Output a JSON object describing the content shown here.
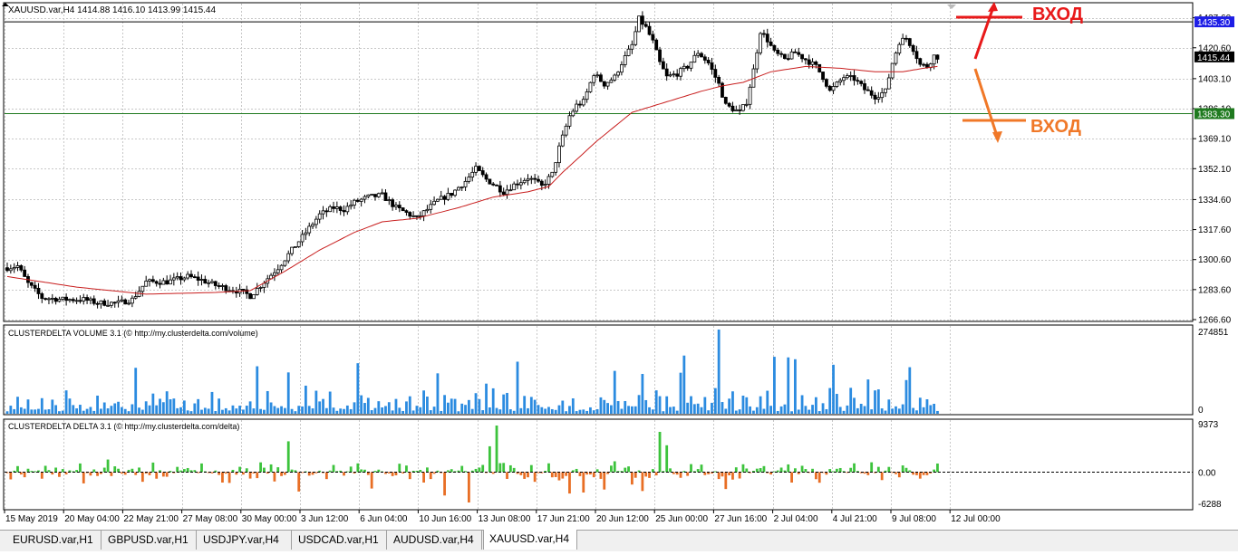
{
  "window": {
    "symbol_header": "XAUUSD.var,H4  1414.88 1416.10 1413.99 1415.44"
  },
  "price_axis": {
    "ticks": [
      "1437.60",
      "1420.60",
      "1403.10",
      "1386.10",
      "1369.10",
      "1352.10",
      "1334.60",
      "1317.60",
      "1300.60",
      "1283.60",
      "1266.60"
    ],
    "markers": [
      {
        "value": "1435.30",
        "color": "#1e1ee6"
      },
      {
        "value": "1415.44",
        "color": "#000000"
      },
      {
        "value": "1383.30",
        "color": "#1f7a1f"
      }
    ]
  },
  "annotations": {
    "entry_top_label": "ВХОД",
    "entry_bottom_label": "ВХОД",
    "entry_top_color": "#e8191a",
    "entry_bottom_color": "#f07828"
  },
  "volume_panel": {
    "title": "CLUSTERDELTA VOLUME 3.1 (© http://my.clusterdelta.com/volume)",
    "max_label": "274851",
    "min_label": "0",
    "bar_color": "#2b8be0"
  },
  "delta_panel": {
    "title": "CLUSTERDELTA DELTA 3.1 (© http://my.clusterdelta.com/delta)",
    "max_label": "9373",
    "zero_label": "0.00",
    "min_label": "-6288",
    "positive_color": "#3cc33c",
    "negative_color": "#e86e24"
  },
  "time_axis": {
    "labels": [
      "15 May 2019",
      "20 May 04:00",
      "22 May 21:00",
      "27 May 08:00",
      "30 May 00:00",
      "3 Jun 12:00",
      "6 Jun 04:00",
      "10 Jun 16:00",
      "13 Jun 08:00",
      "17 Jun 21:00",
      "20 Jun 12:00",
      "25 Jun 00:00",
      "27 Jun 16:00",
      "2 Jul 04:00",
      "4 Jul 21:00",
      "9 Jul 08:00",
      "12 Jul 00:00"
    ]
  },
  "tabs": [
    {
      "label": "EURUSD.var,H1",
      "active": false
    },
    {
      "label": "GBPUSD.var,H1",
      "active": false
    },
    {
      "label": "USDJPY.var,H4",
      "active": false
    },
    {
      "label": "USDCAD.var,H1",
      "active": false
    },
    {
      "label": "AUDUSD.var,H4",
      "active": false
    },
    {
      "label": "XAUUSD.var,H4",
      "active": true
    }
  ],
  "chart_data": [
    {
      "type": "candlestick",
      "title": "XAUUSD.var,H4",
      "ylim": [
        1266.6,
        1441
      ],
      "horizontal_levels": [
        1435.3,
        1383.3
      ],
      "last_price": 1415.44,
      "ma_color": "#c81e1e",
      "close_anchors": [
        [
          0,
          1296
        ],
        [
          3,
          1297
        ],
        [
          6,
          1287
        ],
        [
          10,
          1279
        ],
        [
          16,
          1278
        ],
        [
          22,
          1278
        ],
        [
          26,
          1276
        ],
        [
          32,
          1276
        ],
        [
          36,
          1278
        ],
        [
          40,
          1288
        ],
        [
          46,
          1288
        ],
        [
          52,
          1291
        ],
        [
          56,
          1289
        ],
        [
          60,
          1286
        ],
        [
          64,
          1284
        ],
        [
          68,
          1282
        ],
        [
          70,
          1280
        ],
        [
          73,
          1286
        ],
        [
          78,
          1296
        ],
        [
          82,
          1306
        ],
        [
          86,
          1316
        ],
        [
          90,
          1326
        ],
        [
          94,
          1330
        ],
        [
          97,
          1329
        ],
        [
          100,
          1333
        ],
        [
          104,
          1336
        ],
        [
          108,
          1337
        ],
        [
          112,
          1330
        ],
        [
          116,
          1326
        ],
        [
          118,
          1324
        ],
        [
          121,
          1329
        ],
        [
          124,
          1334
        ],
        [
          128,
          1338
        ],
        [
          132,
          1345
        ],
        [
          135,
          1352
        ],
        [
          138,
          1346
        ],
        [
          141,
          1342
        ],
        [
          143,
          1339
        ],
        [
          146,
          1343
        ],
        [
          150,
          1347
        ],
        [
          152,
          1345
        ],
        [
          154,
          1342
        ],
        [
          157,
          1349
        ],
        [
          159,
          1364
        ],
        [
          162,
          1382
        ],
        [
          164,
          1388
        ],
        [
          166,
          1390
        ],
        [
          169,
          1406
        ],
        [
          172,
          1400
        ],
        [
          175,
          1404
        ],
        [
          177,
          1412
        ],
        [
          180,
          1422
        ],
        [
          182,
          1437
        ],
        [
          184,
          1432
        ],
        [
          186,
          1424
        ],
        [
          188,
          1412
        ],
        [
          190,
          1404
        ],
        [
          193,
          1406
        ],
        [
          196,
          1410
        ],
        [
          199,
          1418
        ],
        [
          202,
          1412
        ],
        [
          205,
          1400
        ],
        [
          207,
          1388
        ],
        [
          209,
          1386
        ],
        [
          211,
          1384
        ],
        [
          213,
          1390
        ],
        [
          215,
          1408
        ],
        [
          217,
          1430
        ],
        [
          219,
          1425
        ],
        [
          221,
          1418
        ],
        [
          224,
          1414
        ],
        [
          227,
          1418
        ],
        [
          230,
          1414
        ],
        [
          233,
          1410
        ],
        [
          235,
          1404
        ],
        [
          237,
          1396
        ],
        [
          239,
          1400
        ],
        [
          241,
          1404
        ],
        [
          244,
          1403
        ],
        [
          247,
          1397
        ],
        [
          250,
          1393
        ],
        [
          253,
          1396
        ],
        [
          255,
          1412
        ],
        [
          257,
          1424
        ],
        [
          259,
          1426
        ],
        [
          261,
          1420
        ],
        [
          263,
          1411
        ],
        [
          265,
          1410
        ],
        [
          267,
          1416
        ],
        [
          268,
          1415.44
        ]
      ],
      "ma_anchors": [
        [
          0,
          1291
        ],
        [
          20,
          1285
        ],
        [
          40,
          1281
        ],
        [
          60,
          1282
        ],
        [
          70,
          1283
        ],
        [
          80,
          1294
        ],
        [
          90,
          1306
        ],
        [
          100,
          1316
        ],
        [
          108,
          1322
        ],
        [
          118,
          1324
        ],
        [
          130,
          1330
        ],
        [
          140,
          1336
        ],
        [
          150,
          1339
        ],
        [
          156,
          1342
        ],
        [
          160,
          1350
        ],
        [
          170,
          1368
        ],
        [
          180,
          1384
        ],
        [
          190,
          1390
        ],
        [
          200,
          1396
        ],
        [
          206,
          1399
        ],
        [
          212,
          1401
        ],
        [
          220,
          1407
        ],
        [
          230,
          1410
        ],
        [
          240,
          1409
        ],
        [
          250,
          1407
        ],
        [
          258,
          1407
        ],
        [
          264,
          1409
        ],
        [
          268,
          1410
        ]
      ]
    },
    {
      "type": "bar",
      "title": "CLUSTERDELTA VOLUME 3.1",
      "ylim": [
        0,
        274851
      ],
      "spikes": [
        [
          205,
          274851
        ],
        [
          225,
          184000
        ],
        [
          238,
          160000
        ],
        [
          195,
          190000
        ],
        [
          221,
          186000
        ],
        [
          227,
          178000
        ],
        [
          147,
          170000
        ],
        [
          101,
          165000
        ],
        [
          72,
          155000
        ],
        [
          37,
          150000
        ],
        [
          81,
          135000
        ],
        [
          124,
          132000
        ],
        [
          175,
          140000
        ],
        [
          183,
          130000
        ],
        [
          194,
          134000
        ],
        [
          260,
          152000
        ],
        [
          259,
          110000
        ],
        [
          248,
          112000
        ]
      ]
    },
    {
      "type": "bar",
      "title": "CLUSTERDELTA DELTA 3.1",
      "ylim": [
        -6288,
        9373
      ],
      "spikes": [
        [
          141,
          9373
        ],
        [
          139,
          5200
        ],
        [
          188,
          8100
        ],
        [
          190,
          5400
        ],
        [
          81,
          6200
        ],
        [
          133,
          -6100
        ],
        [
          126,
          -4700
        ],
        [
          166,
          -4100
        ],
        [
          84,
          -3900
        ],
        [
          162,
          -4300
        ],
        [
          105,
          -3300
        ],
        [
          172,
          -3500
        ],
        [
          183,
          -3800
        ],
        [
          207,
          -3400
        ]
      ]
    }
  ]
}
